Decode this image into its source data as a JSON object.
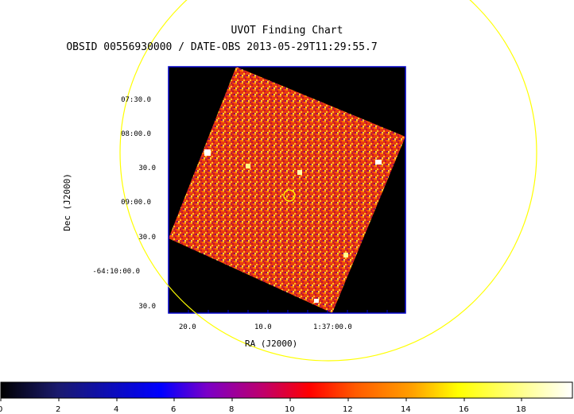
{
  "chart": {
    "title": "UVOT Finding Chart",
    "subtitle": "OBSID 00556930000 / DATE-OBS 2013-05-29T11:29:55.7",
    "xlabel": "RA (J2000)",
    "ylabel": "Dec (J2000)",
    "yticks": [
      "07:30.0",
      "08:00.0",
      "30.0",
      "09:00.0",
      "30.0",
      "-64:10:00.0",
      "30.0"
    ],
    "xticks": [
      "20.0",
      "10.0",
      "1:37:00.0"
    ],
    "colorbar": {
      "ticks": [
        "0",
        "2",
        "4",
        "6",
        "8",
        "10",
        "12",
        "14",
        "16",
        "18"
      ],
      "range": [
        0,
        19.5
      ],
      "stops": [
        "#000000",
        "#1a1a6e",
        "#0000ff",
        "#7a00c8",
        "#c0006a",
        "#ff0000",
        "#ff5a00",
        "#ffa000",
        "#ffff00",
        "#ffffff"
      ]
    },
    "colors": {
      "frame": "#0000cc",
      "circle": "#ffff00",
      "background": "#000000"
    }
  }
}
